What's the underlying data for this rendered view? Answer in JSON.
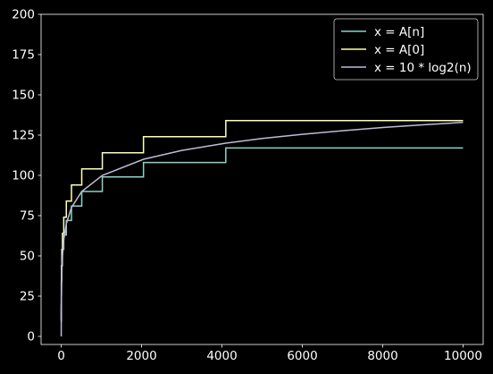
{
  "chart_data": {
    "type": "line",
    "title": "",
    "xlabel": "",
    "ylabel": "",
    "xlim": [
      -500,
      10500
    ],
    "ylim": [
      -5,
      200
    ],
    "xticks": [
      0,
      2000,
      4000,
      6000,
      8000,
      10000
    ],
    "yticks": [
      0,
      25,
      50,
      75,
      100,
      125,
      150,
      175,
      200
    ],
    "grid": false,
    "legend_position": "top-right",
    "background": "#000000",
    "series": [
      {
        "name": "x = A[n]",
        "color": "#8dd3c7",
        "step": true,
        "x": [
          1,
          2,
          4,
          8,
          16,
          32,
          64,
          128,
          256,
          512,
          1024,
          2048,
          4096,
          8192,
          10000
        ],
        "y": [
          9,
          17,
          26,
          35,
          44,
          54,
          63,
          72,
          81,
          90,
          99,
          108,
          117,
          117,
          117
        ]
      },
      {
        "name": "x = A[0]",
        "color": "#ffffb3",
        "step": true,
        "x": [
          1,
          2,
          4,
          8,
          16,
          32,
          64,
          128,
          256,
          512,
          1024,
          2048,
          4096,
          8192,
          10000
        ],
        "y": [
          10,
          20,
          34,
          44,
          54,
          64,
          74,
          84,
          94,
          104,
          114,
          124,
          134,
          134,
          134
        ]
      },
      {
        "name": "x = 10 * log2(n)",
        "color": "#bebada",
        "step": false,
        "x": [
          1,
          2,
          4,
          8,
          16,
          32,
          64,
          128,
          256,
          512,
          1024,
          2048,
          3000,
          4096,
          5000,
          6000,
          7000,
          8000,
          9000,
          10000
        ],
        "y": [
          0,
          10,
          20,
          30,
          40,
          50,
          60,
          70,
          80,
          90,
          100,
          110,
          115.5,
          120,
          122.9,
          125.5,
          127.7,
          129.7,
          131.4,
          132.9
        ]
      }
    ]
  }
}
